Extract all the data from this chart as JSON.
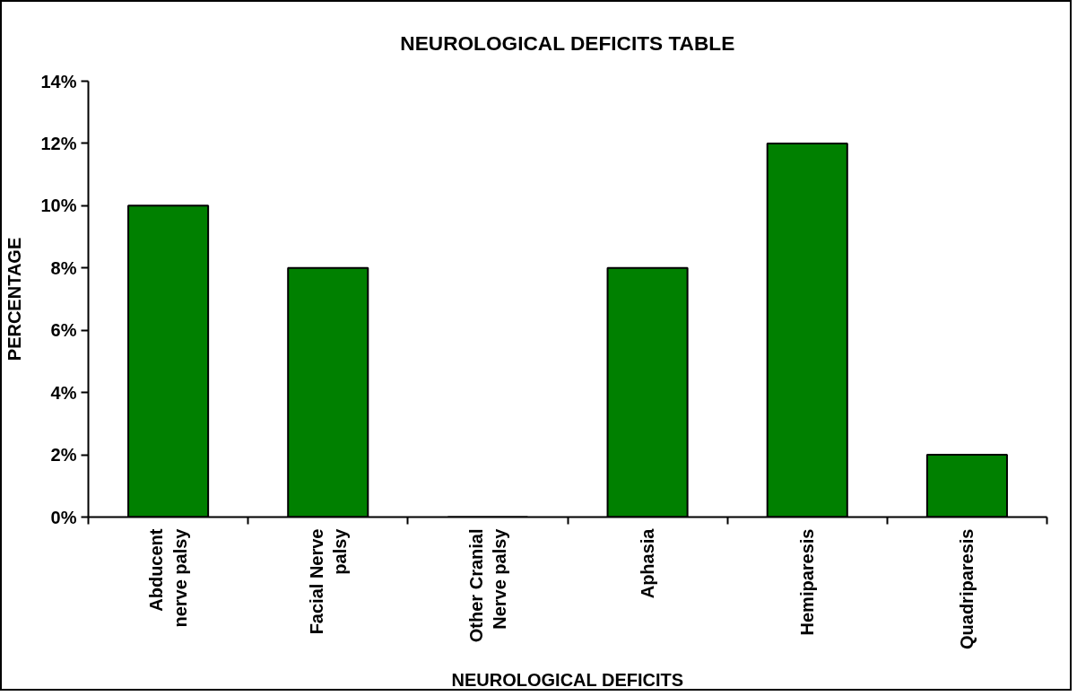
{
  "chart_data": {
    "type": "bar",
    "title": "NEUROLOGICAL DEFICITS TABLE",
    "xlabel": "NEUROLOGICAL DEFICITS",
    "ylabel": "PERCENTAGE",
    "categories": [
      "Abducent\nnerve palsy",
      "Facial Nerve\npalsy",
      "Other Cranial\nNerve palsy",
      "Aphasia",
      "Hemiparesis",
      "Quadriparesis"
    ],
    "values": [
      10,
      8,
      0,
      8,
      12,
      2
    ],
    "color": "#008000",
    "ylim": [
      0,
      14
    ],
    "yticks": [
      {
        "value": 0,
        "label": "0%"
      },
      {
        "value": 2,
        "label": "2%"
      },
      {
        "value": 4,
        "label": "4%"
      },
      {
        "value": 6,
        "label": "6%"
      },
      {
        "value": 8,
        "label": "8%"
      },
      {
        "value": 10,
        "label": "10%"
      },
      {
        "value": 12,
        "label": "12%"
      },
      {
        "value": 14,
        "label": "14%"
      }
    ],
    "grid": false
  }
}
